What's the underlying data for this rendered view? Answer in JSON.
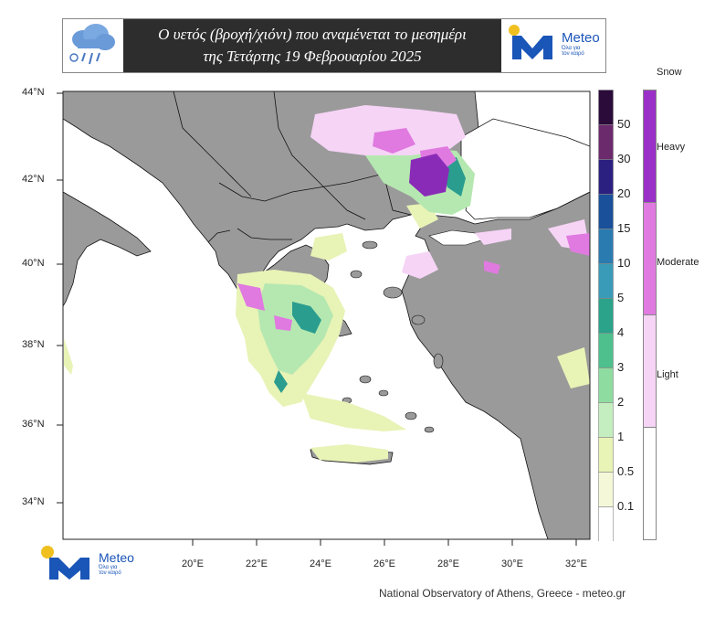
{
  "header": {
    "title_line1": "Ο υετός (βροχή/χιόνι) που αναμένεται το μεσημέρι",
    "title_line2": "της Τετάρτης 19 Φεβρουαρίου  2025"
  },
  "brand": {
    "name": "Meteo",
    "tagline_1": "Όλα για",
    "tagline_2": "τον καιρό"
  },
  "map": {
    "lat_labels": [
      "44°N",
      "42°N",
      "40°N",
      "38°N",
      "36°N",
      "34°N"
    ],
    "lon_labels": [
      "20°E",
      "22°E",
      "24°E",
      "26°E",
      "28°E",
      "30°E",
      "32°E"
    ],
    "colors": {
      "land": "#9a9a9a",
      "sea": "#ffffff",
      "light_green": "#e8f3b6",
      "green": "#b5e8b0",
      "teal": "#2a9d8f",
      "magenta": "#d96bd9",
      "purple": "#8a2bb8",
      "pink": "#f4c6f4"
    }
  },
  "precip_legend": {
    "labels": [
      "50",
      "30",
      "20",
      "15",
      "10",
      "5",
      "4",
      "3",
      "2",
      "1",
      "0.5",
      "0.1"
    ],
    "colors": [
      "#2b0b3a",
      "#6b2a6b",
      "#2b1f80",
      "#1a4f9a",
      "#2a7bb0",
      "#3a9bb8",
      "#2aa38a",
      "#4ec08e",
      "#8fdca0",
      "#c4eec0",
      "#e8f3b6",
      "#f4f8d8",
      "#ffffff"
    ]
  },
  "snow_legend": {
    "title": "Snow",
    "labels": [
      "Heavy",
      "Moderate",
      "Light"
    ],
    "colors": [
      "#9b30c8",
      "#e07ae0",
      "#f6d4f6",
      "#ffffff"
    ]
  },
  "credit": "National Observatory of Athens, Greece - meteo.gr"
}
